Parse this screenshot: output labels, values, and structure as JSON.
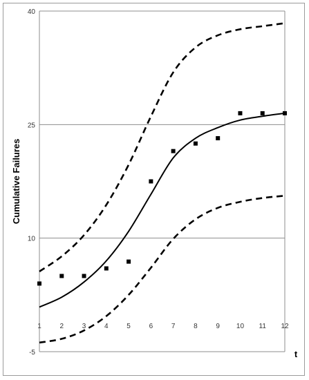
{
  "chart_data": {
    "type": "line",
    "title": "",
    "xlabel": "t",
    "ylabel": "Cumulative Failures",
    "x": [
      1,
      2,
      3,
      4,
      5,
      6,
      7,
      8,
      9,
      10,
      11,
      12
    ],
    "xlim": [
      1,
      12
    ],
    "ylim": [
      -5,
      40
    ],
    "yticks": [
      -5,
      10,
      25,
      40
    ],
    "grid": "horizontal",
    "legend": "none",
    "series": [
      {
        "style": "markers",
        "marker": "square",
        "color": "#000000",
        "values": [
          4,
          5,
          5,
          6,
          6.9,
          17.5,
          21.5,
          22.5,
          23.2,
          26.5,
          26.5,
          26.5
        ]
      },
      {
        "style": "solid",
        "color": "#000000",
        "values": [
          0.9,
          2.2,
          4.2,
          7.0,
          10.9,
          15.8,
          20.6,
          23.2,
          24.6,
          25.6,
          26.1,
          26.5
        ]
      },
      {
        "style": "dashed",
        "color": "#000000",
        "values": [
          5.6,
          7.6,
          10.4,
          14.4,
          19.7,
          26.1,
          31.9,
          35.2,
          36.8,
          37.6,
          38.0,
          38.4
        ]
      },
      {
        "style": "dashed",
        "color": "#000000",
        "values": [
          -3.8,
          -3.3,
          -2.2,
          -0.3,
          2.5,
          6.1,
          9.9,
          12.5,
          14.0,
          14.8,
          15.3,
          15.6
        ]
      }
    ]
  }
}
